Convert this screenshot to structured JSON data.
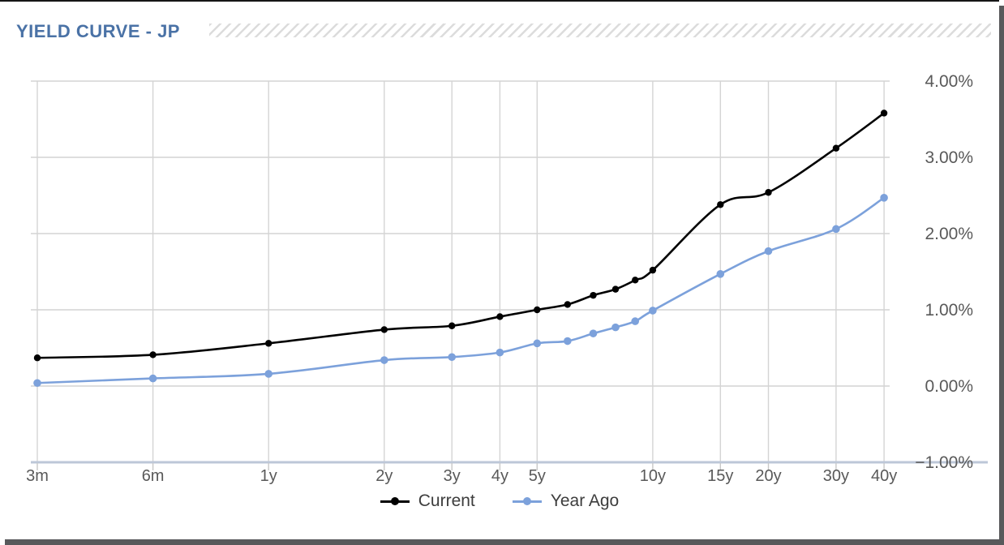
{
  "page": {
    "title": "YIELD CURVE - JP"
  },
  "legend": {
    "items": [
      "Current",
      "Year Ago"
    ]
  },
  "colors": {
    "title_blue": "#4a72a6",
    "current_line": "#000000",
    "year_ago_line": "#7ca1db",
    "gridline": "#d4d4d4",
    "axis_line": "#bdc7d8",
    "tick": "#c8c8c8",
    "axis_label": "#595959",
    "shadow": "#58595b",
    "hatch_stripe": "#dcdcdc"
  },
  "chart_data": {
    "type": "line",
    "title": "YIELD CURVE - JP",
    "xlabel": "",
    "ylabel": "",
    "x_scale": "log",
    "grid": true,
    "legend_position": "bottom",
    "ylim": [
      -1,
      4
    ],
    "y_tick_values": [
      4,
      3,
      2,
      1,
      0,
      -1
    ],
    "y_tick_labels": [
      "4.00%",
      "3.00%",
      "2.00%",
      "1.00%",
      "0.00%",
      "−1.00%"
    ],
    "x_tick_years": [
      0.25,
      0.5,
      1,
      2,
      3,
      4,
      5,
      10,
      15,
      20,
      30,
      40
    ],
    "x_tick_labels": [
      "3m",
      "6m",
      "1y",
      "2y",
      "3y",
      "4y",
      "5y",
      "10y",
      "15y",
      "20y",
      "30y",
      "40y"
    ],
    "categories": [
      "3m",
      "6m",
      "1y",
      "2y",
      "3y",
      "4y",
      "5y",
      "6y",
      "7y",
      "8y",
      "9y",
      "10y",
      "15y",
      "20y",
      "30y",
      "40y"
    ],
    "maturity_years": [
      0.25,
      0.5,
      1,
      2,
      3,
      4,
      5,
      6,
      7,
      8,
      9,
      10,
      15,
      20,
      30,
      40
    ],
    "series": [
      {
        "name": "Current",
        "color": "#000000",
        "marker_radius": 4.2,
        "values": [
          0.37,
          0.41,
          0.56,
          0.74,
          0.79,
          0.91,
          1.0,
          1.07,
          1.19,
          1.27,
          1.39,
          1.52,
          2.38,
          2.54,
          3.12,
          3.58
        ]
      },
      {
        "name": "Year Ago",
        "color": "#7ca1db",
        "marker_radius": 4.8,
        "values": [
          0.04,
          0.1,
          0.16,
          0.34,
          0.38,
          0.44,
          0.56,
          0.59,
          0.69,
          0.77,
          0.85,
          0.99,
          1.47,
          1.77,
          2.06,
          2.47
        ]
      }
    ]
  }
}
